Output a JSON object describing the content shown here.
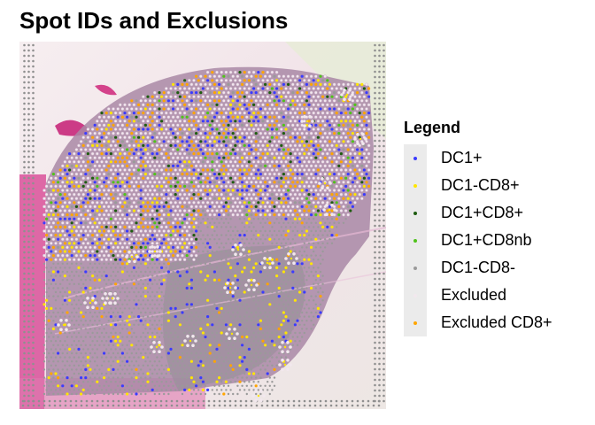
{
  "title": "Spot IDs and Exclusions",
  "legend": {
    "title": "Legend",
    "items": [
      {
        "label": "DC1+",
        "color": "#3b3bff",
        "key": "dc1"
      },
      {
        "label": "DC1-CD8+",
        "color": "#ffe600",
        "key": "dc1-cd8"
      },
      {
        "label": "DC1+CD8+",
        "color": "#1e5c10",
        "key": "dc1cd8"
      },
      {
        "label": "DC1+CD8nb",
        "color": "#4fc21a",
        "key": "dc1cd8nb"
      },
      {
        "label": "DC1-CD8-",
        "color": "#9a9a9a",
        "key": "dc1neg"
      },
      {
        "label": "Excluded",
        "color": "#f2e8ee",
        "key": "excluded"
      },
      {
        "label": "Excluded CD8+",
        "color": "#ffa500",
        "key": "excluded-cd8"
      }
    ]
  }
}
